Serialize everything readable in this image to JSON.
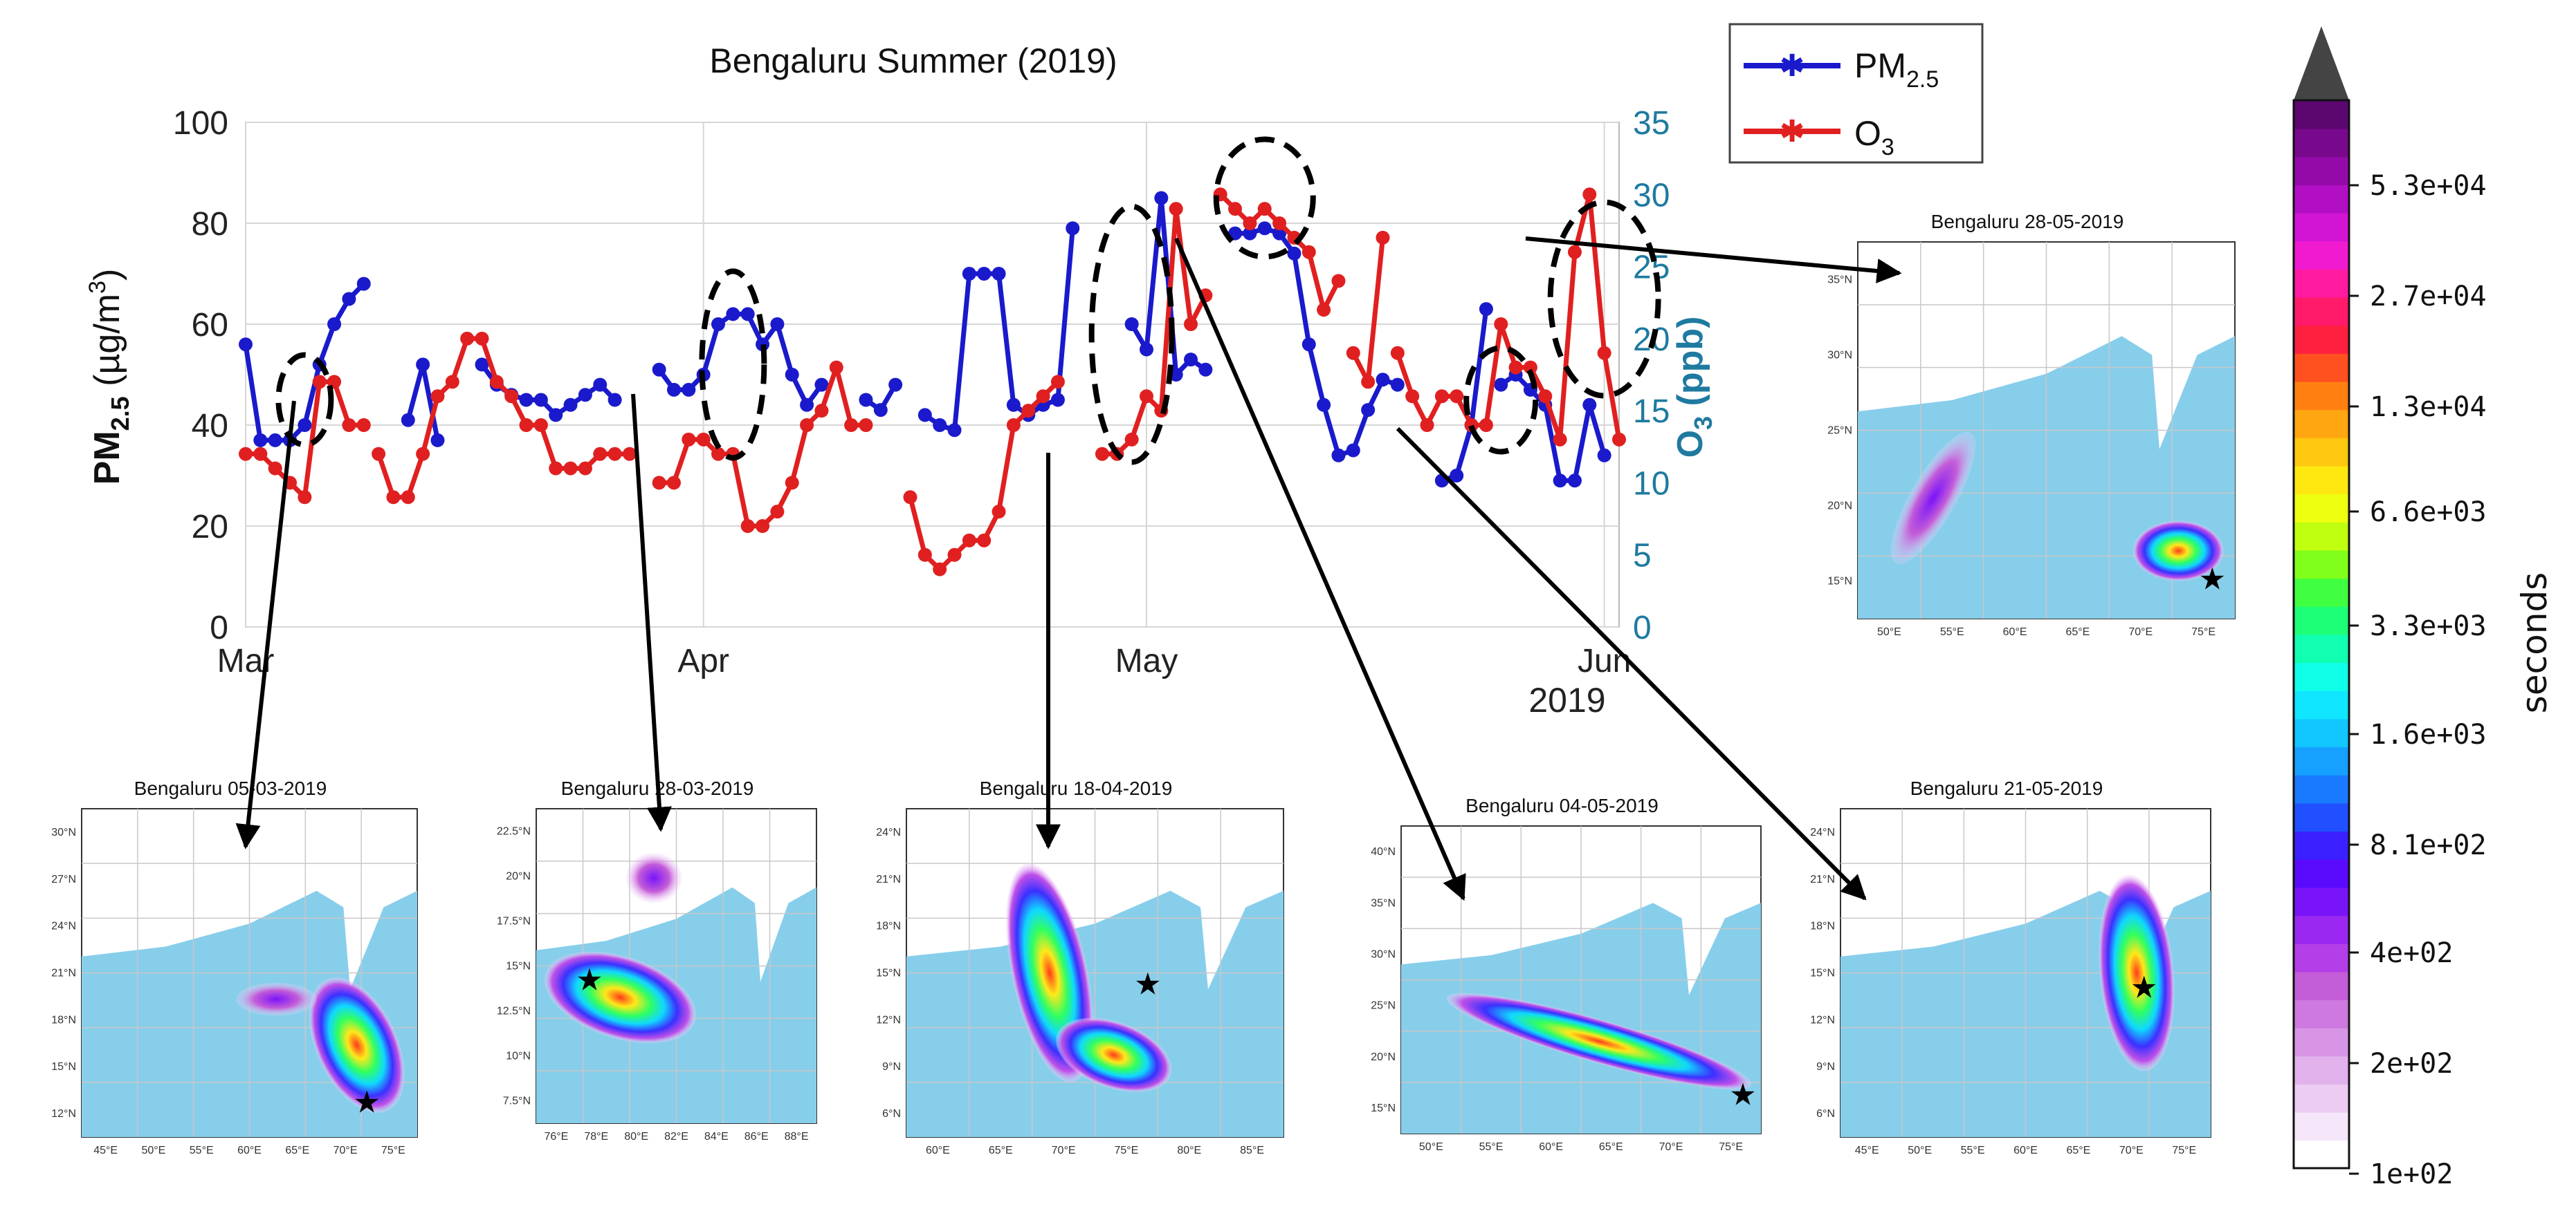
{
  "chart_data": {
    "type": "line",
    "title": "Bengaluru Summer (2019)",
    "ylabel_left": {
      "main": "PM",
      "sub": "2.5",
      "unit": " (µg/m",
      "sup": "3",
      "close": ")"
    },
    "ylabel_right": {
      "main": "O",
      "sub": "3",
      "unit": " (ppb)"
    },
    "x_ticks": [
      "Mar",
      "Apr",
      "May",
      "Jun"
    ],
    "x_year": "2019",
    "x_range_days": [
      0,
      93
    ],
    "x_tick_days": [
      0,
      31,
      61,
      92
    ],
    "y_left_ticks": [
      "0",
      "20",
      "40",
      "60",
      "80",
      "100"
    ],
    "ylim_left": [
      0,
      100
    ],
    "y_right_ticks": [
      "0",
      "5",
      "10",
      "15",
      "20",
      "25",
      "30",
      "35"
    ],
    "ylim_right": [
      0,
      35
    ],
    "grid": true,
    "legend": {
      "position": "top-right",
      "pm_main": "PM",
      "pm_sub": "2.5",
      "o3_main": "O",
      "o3_sub": "3"
    },
    "series": [
      {
        "name": "PM2.5",
        "axis": "left",
        "color": "#1a1acc",
        "segments": [
          [
            [
              0,
              56
            ],
            [
              1,
              37
            ],
            [
              2,
              37
            ],
            [
              3,
              37
            ],
            [
              4,
              40
            ],
            [
              5,
              52
            ],
            [
              6,
              60
            ],
            [
              7,
              65
            ],
            [
              8,
              68
            ]
          ],
          [
            [
              11,
              41
            ],
            [
              12,
              52
            ],
            [
              13,
              37
            ]
          ],
          [
            [
              16,
              52
            ],
            [
              17,
              48
            ],
            [
              18,
              46
            ],
            [
              19,
              45
            ],
            [
              20,
              45
            ],
            [
              21,
              42
            ],
            [
              22,
              44
            ],
            [
              23,
              46
            ],
            [
              24,
              48
            ],
            [
              25,
              45
            ]
          ],
          [
            [
              28,
              51
            ],
            [
              29,
              47
            ],
            [
              30,
              47
            ],
            [
              31,
              50
            ],
            [
              32,
              60
            ],
            [
              33,
              62
            ],
            [
              34,
              62
            ],
            [
              35,
              56
            ],
            [
              36,
              60
            ],
            [
              37,
              50
            ],
            [
              38,
              44
            ],
            [
              39,
              48
            ]
          ],
          [
            [
              42,
              45
            ],
            [
              43,
              43
            ],
            [
              44,
              48
            ]
          ],
          [
            [
              46,
              42
            ],
            [
              47,
              40
            ],
            [
              48,
              39
            ],
            [
              49,
              70
            ],
            [
              50,
              70
            ],
            [
              51,
              70
            ],
            [
              52,
              44
            ],
            [
              53,
              42
            ],
            [
              54,
              44
            ],
            [
              55,
              45
            ],
            [
              56,
              79
            ]
          ],
          [
            [
              60,
              60
            ],
            [
              61,
              55
            ],
            [
              62,
              85
            ],
            [
              63,
              50
            ],
            [
              64,
              53
            ],
            [
              65,
              51
            ]
          ],
          [
            [
              67,
              78
            ],
            [
              68,
              78
            ],
            [
              69,
              79
            ],
            [
              70,
              78
            ],
            [
              71,
              74
            ],
            [
              72,
              56
            ],
            [
              73,
              44
            ],
            [
              74,
              34
            ],
            [
              75,
              35
            ],
            [
              76,
              43
            ],
            [
              77,
              49
            ],
            [
              78,
              48
            ]
          ],
          [
            [
              81,
              29
            ],
            [
              82,
              30
            ],
            [
              83,
              40
            ],
            [
              84,
              63
            ]
          ],
          [
            [
              85,
              48
            ],
            [
              86,
              50
            ],
            [
              87,
              47
            ],
            [
              88,
              44
            ],
            [
              89,
              29
            ],
            [
              90,
              29
            ],
            [
              91,
              44
            ],
            [
              92,
              34
            ]
          ]
        ]
      },
      {
        "name": "O3",
        "axis": "right",
        "color": "#e02020",
        "segments": [
          [
            [
              0,
              12
            ],
            [
              1,
              12
            ],
            [
              2,
              11
            ],
            [
              3,
              10
            ],
            [
              4,
              9
            ],
            [
              5,
              17
            ],
            [
              6,
              17
            ],
            [
              7,
              14
            ],
            [
              8,
              14
            ]
          ],
          [
            [
              9,
              12
            ],
            [
              10,
              9
            ],
            [
              11,
              9
            ],
            [
              12,
              12
            ],
            [
              13,
              16
            ],
            [
              14,
              17
            ],
            [
              15,
              20
            ],
            [
              16,
              20
            ],
            [
              17,
              17
            ],
            [
              18,
              16
            ],
            [
              19,
              14
            ],
            [
              20,
              14
            ],
            [
              21,
              11
            ],
            [
              22,
              11
            ],
            [
              23,
              11
            ],
            [
              24,
              12
            ],
            [
              25,
              12
            ],
            [
              26,
              12
            ]
          ],
          [
            [
              28,
              10
            ],
            [
              29,
              10
            ],
            [
              30,
              13
            ],
            [
              31,
              13
            ],
            [
              32,
              12
            ],
            [
              33,
              12
            ],
            [
              34,
              7
            ],
            [
              35,
              7
            ],
            [
              36,
              8
            ],
            [
              37,
              10
            ],
            [
              38,
              14
            ],
            [
              39,
              15
            ],
            [
              40,
              18
            ],
            [
              41,
              14
            ],
            [
              42,
              14
            ]
          ],
          [
            [
              45,
              9
            ],
            [
              46,
              5
            ],
            [
              47,
              4
            ],
            [
              48,
              5
            ],
            [
              49,
              6
            ],
            [
              50,
              6
            ],
            [
              51,
              8
            ],
            [
              52,
              14
            ],
            [
              53,
              15
            ],
            [
              54,
              16
            ],
            [
              55,
              17
            ]
          ],
          [
            [
              58,
              12
            ],
            [
              59,
              12
            ],
            [
              60,
              13
            ],
            [
              61,
              16
            ],
            [
              62,
              15
            ],
            [
              63,
              29
            ],
            [
              64,
              21
            ],
            [
              65,
              23
            ]
          ],
          [
            [
              66,
              30
            ],
            [
              67,
              29
            ],
            [
              68,
              28
            ],
            [
              69,
              29
            ],
            [
              70,
              28
            ],
            [
              71,
              27
            ],
            [
              72,
              26
            ],
            [
              73,
              22
            ],
            [
              74,
              24
            ]
          ],
          [
            [
              75,
              19
            ],
            [
              76,
              17
            ],
            [
              77,
              27
            ]
          ],
          [
            [
              78,
              19
            ],
            [
              79,
              16
            ],
            [
              80,
              14
            ],
            [
              81,
              16
            ],
            [
              82,
              16
            ],
            [
              83,
              14
            ],
            [
              84,
              14
            ],
            [
              85,
              21
            ],
            [
              86,
              18
            ],
            [
              87,
              18
            ],
            [
              88,
              16
            ],
            [
              89,
              13
            ],
            [
              90,
              26
            ],
            [
              91,
              30
            ],
            [
              92,
              19
            ],
            [
              93,
              13
            ]
          ]
        ]
      }
    ],
    "highlight_windows": [
      {
        "day": 4,
        "value": 45
      },
      {
        "day": 33,
        "value": 52
      },
      {
        "day": 60,
        "value": 58
      },
      {
        "day": 69,
        "value": 85
      },
      {
        "day": 85,
        "value": 45
      },
      {
        "day": 92,
        "value": 65
      }
    ]
  },
  "colorbar": {
    "label": "seconds",
    "ticks": [
      "5.3e+04",
      "2.7e+04",
      "1.3e+04",
      "6.6e+03",
      "3.3e+03",
      "1.6e+03",
      "8.1e+02",
      "4e+02",
      "2e+02",
      "1e+02"
    ],
    "colors": [
      "#ffffff",
      "#f6e6fa",
      "#ecccf3",
      "#e2b2ec",
      "#d895e6",
      "#ce79df",
      "#c45dd8",
      "#b43ee8",
      "#9a28f0",
      "#7a14f8",
      "#5a0afc",
      "#3a20ff",
      "#2050ff",
      "#1a7aff",
      "#16a0ff",
      "#12c6ff",
      "#10e6ff",
      "#10ffe8",
      "#10ffb0",
      "#1eff78",
      "#40ff40",
      "#80ff1a",
      "#c0ff10",
      "#eeff10",
      "#ffe810",
      "#ffc810",
      "#ffa610",
      "#ff8010",
      "#ff5020",
      "#ff2040",
      "#ff1a6a",
      "#ff1aa0",
      "#f01ad0",
      "#d214d4",
      "#b20ec4",
      "#940aa8",
      "#78088c",
      "#5c0670"
    ],
    "extend_color": "#444444"
  },
  "maps": [
    {
      "title": "Bengaluru 05-03-2019",
      "xticks": [
        "45°E",
        "50°E",
        "55°E",
        "60°E",
        "65°E",
        "70°E",
        "75°E"
      ],
      "yticks": [
        "30°N",
        "27°N",
        "24°N",
        "21°N",
        "18°N",
        "15°N",
        "12°N"
      ]
    },
    {
      "title": "Bengaluru 28-03-2019",
      "xticks": [
        "76°E",
        "78°E",
        "80°E",
        "82°E",
        "84°E",
        "86°E",
        "88°E"
      ],
      "yticks": [
        "22.5°N",
        "20°N",
        "17.5°N",
        "15°N",
        "12.5°N",
        "10°N",
        "7.5°N"
      ]
    },
    {
      "title": "Bengaluru 18-04-2019",
      "xticks": [
        "60°E",
        "65°E",
        "70°E",
        "75°E",
        "80°E",
        "85°E"
      ],
      "yticks": [
        "24°N",
        "21°N",
        "18°N",
        "15°N",
        "12°N",
        "9°N",
        "6°N"
      ]
    },
    {
      "title": "Bengaluru 04-05-2019",
      "xticks": [
        "50°E",
        "55°E",
        "60°E",
        "65°E",
        "70°E",
        "75°E"
      ],
      "yticks": [
        "40°N",
        "35°N",
        "30°N",
        "25°N",
        "20°N",
        "15°N"
      ]
    },
    {
      "title": "Bengaluru 21-05-2019",
      "xticks": [
        "45°E",
        "50°E",
        "55°E",
        "60°E",
        "65°E",
        "70°E",
        "75°E"
      ],
      "yticks": [
        "24°N",
        "21°N",
        "18°N",
        "15°N",
        "12°N",
        "9°N",
        "6°N"
      ]
    },
    {
      "title": "Bengaluru 28-05-2019",
      "xticks": [
        "50°E",
        "55°E",
        "60°E",
        "65°E",
        "70°E",
        "75°E"
      ],
      "yticks": [
        "35°N",
        "30°N",
        "25°N",
        "20°N",
        "15°N"
      ]
    }
  ]
}
